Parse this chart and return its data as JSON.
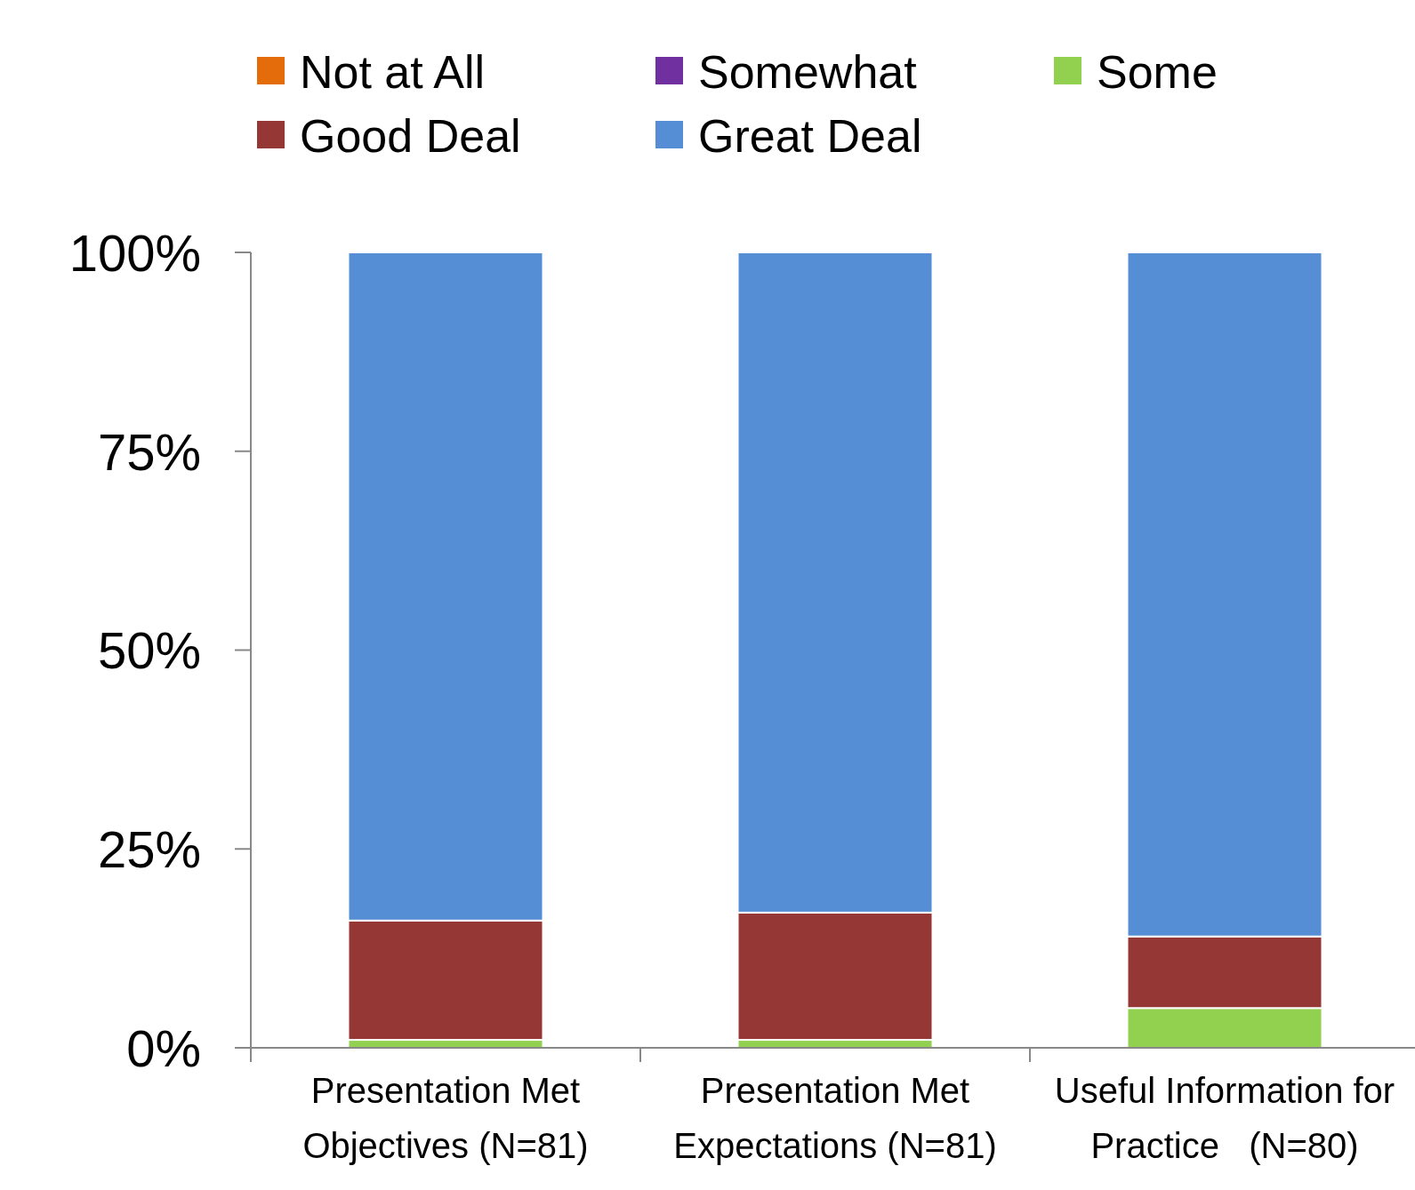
{
  "chart_data": {
    "type": "bar",
    "stacked": true,
    "categories": [
      "Presentation Met\nObjectives (N=81)",
      "Presentation Met\nExpectations (N=81)",
      "Useful Information for\nPractice   (N=80)"
    ],
    "series": [
      {
        "name": "Not at All",
        "color": "#e46c0a",
        "values": [
          0,
          0,
          0
        ]
      },
      {
        "name": "Somewhat",
        "color": "#7030a0",
        "values": [
          0,
          0,
          0
        ]
      },
      {
        "name": "Some",
        "color": "#92d050",
        "values": [
          1,
          1,
          5
        ]
      },
      {
        "name": "Good Deal",
        "color": "#953735",
        "values": [
          15,
          16,
          9
        ]
      },
      {
        "name": "Great Deal",
        "color": "#558ed5",
        "values": [
          84,
          83,
          86
        ]
      }
    ],
    "ylim": [
      0,
      100
    ],
    "yticks": [
      {
        "value": 0,
        "label": "0%"
      },
      {
        "value": 25,
        "label": "25%"
      },
      {
        "value": 50,
        "label": "50%"
      },
      {
        "value": 75,
        "label": "75%"
      },
      {
        "value": 100,
        "label": "100%"
      }
    ],
    "grid": false,
    "legend": "top"
  }
}
